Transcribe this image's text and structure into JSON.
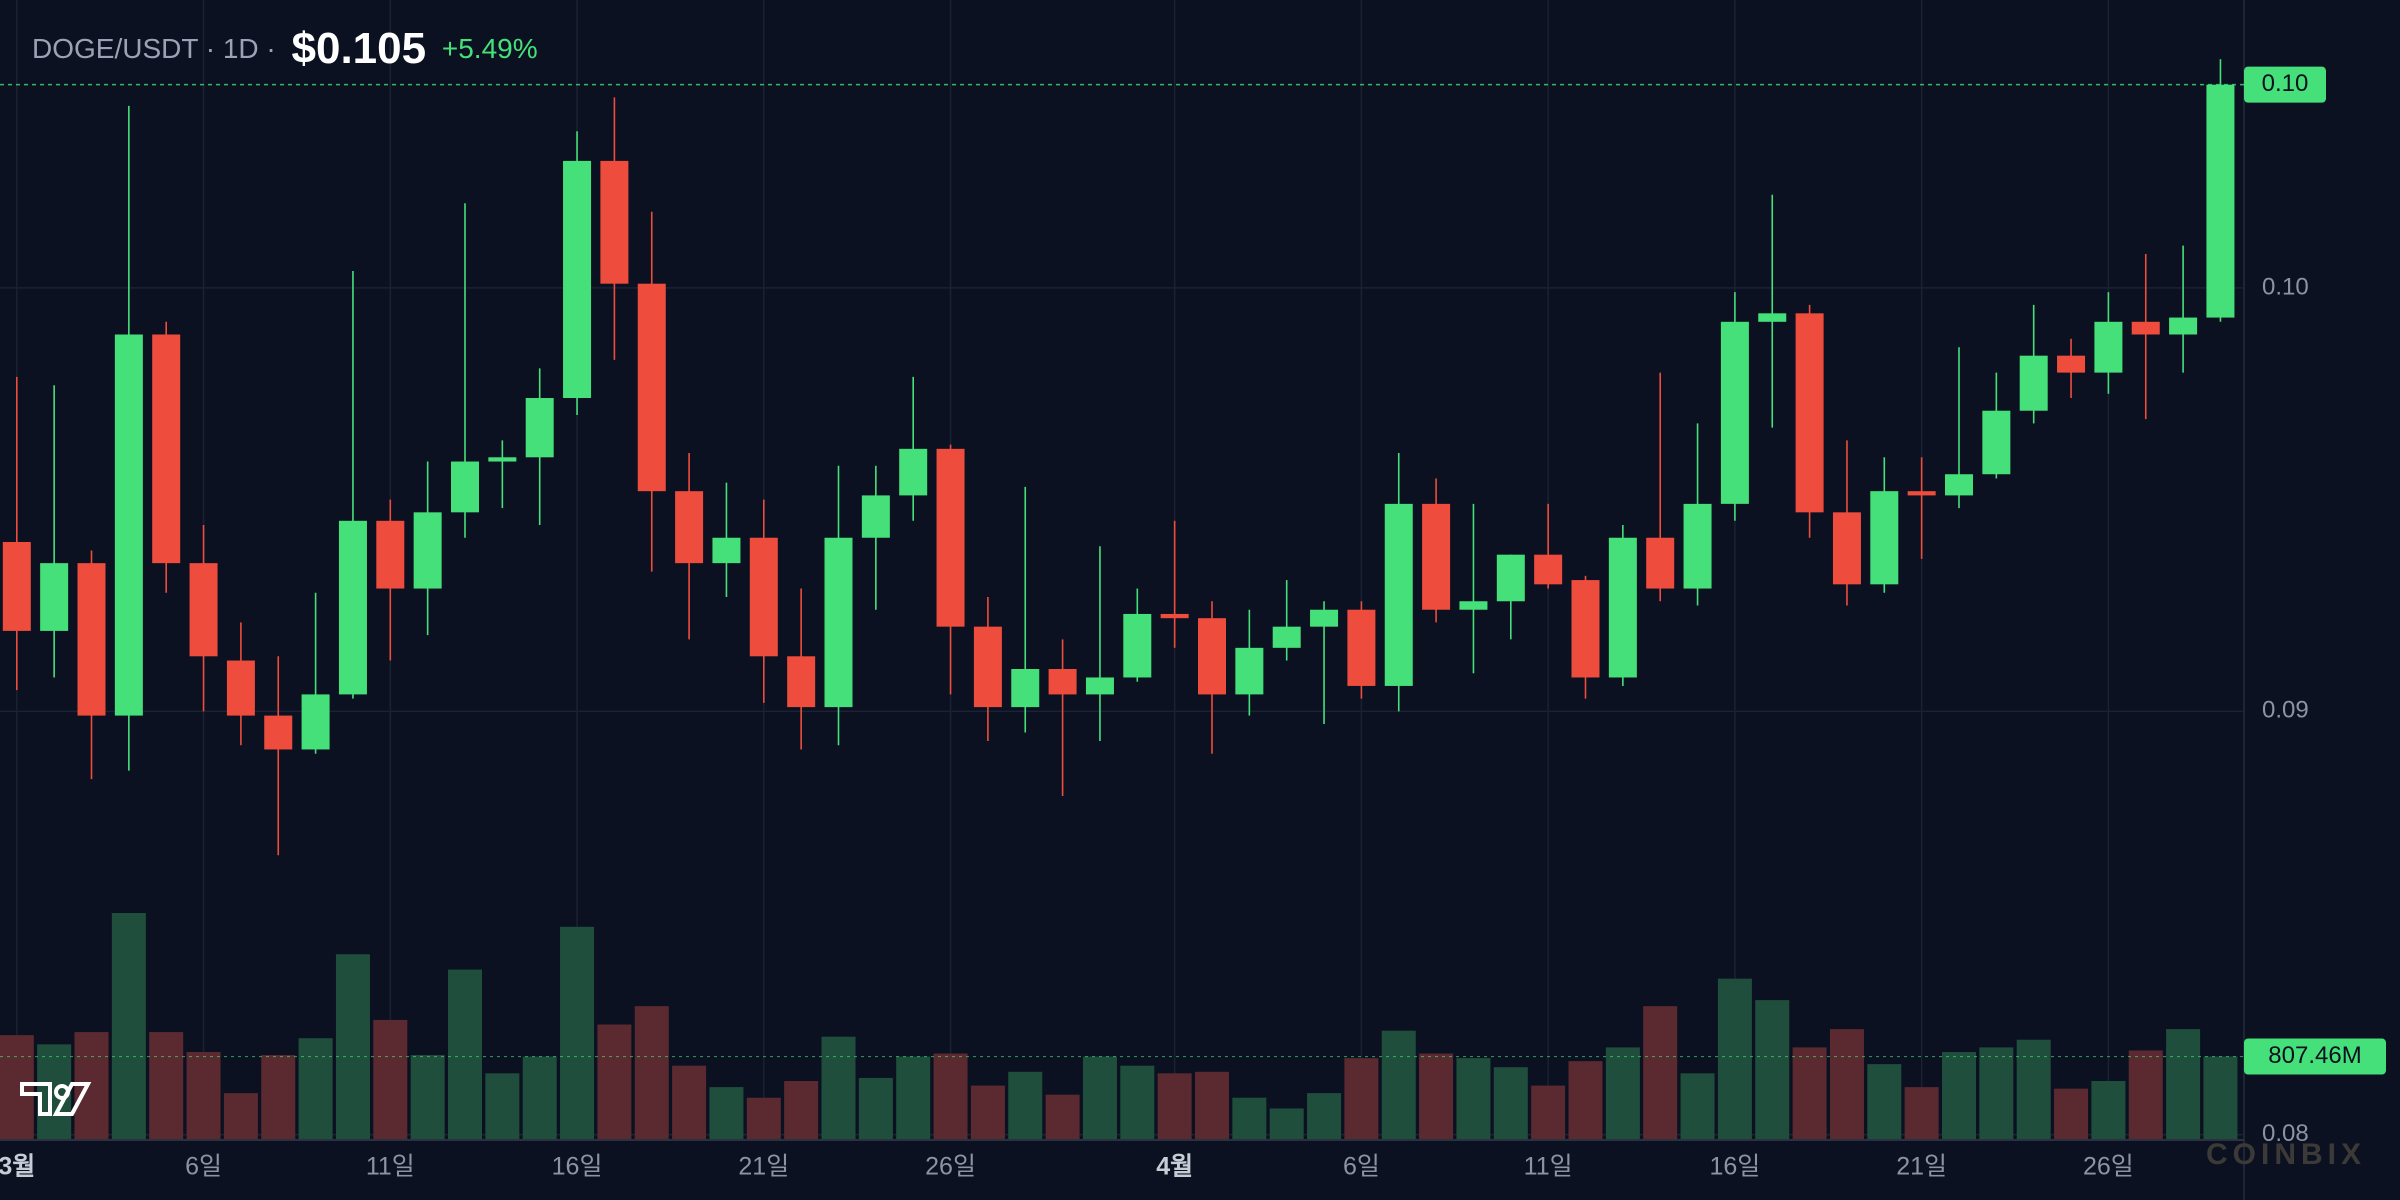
{
  "chart_data": {
    "type": "candlestick",
    "symbol": "DOGE/USDT · 1D ·",
    "price": "$0.105",
    "change": "+5.49%",
    "categories": [
      "3월",
      null,
      null,
      null,
      null,
      "6일",
      null,
      null,
      null,
      null,
      "11일",
      null,
      null,
      null,
      null,
      "16일",
      null,
      null,
      null,
      null,
      "21일",
      null,
      null,
      null,
      null,
      "26일",
      null,
      null,
      null,
      null,
      null,
      "4월",
      null,
      null,
      null,
      null,
      "6일",
      null,
      null,
      null,
      null,
      "11일",
      null,
      null,
      null,
      null,
      "16일",
      null,
      null,
      null,
      null,
      "21일",
      null,
      null,
      null,
      null,
      "26일",
      null,
      null,
      null
    ],
    "open": [
      0.094,
      0.0919,
      0.0935,
      0.0899,
      0.0989,
      0.0935,
      0.0912,
      0.0899,
      0.0891,
      0.0904,
      0.0945,
      0.0929,
      0.0947,
      0.0959,
      0.096,
      0.0974,
      0.103,
      0.1001,
      0.0952,
      0.0935,
      0.0941,
      0.0913,
      0.0901,
      0.0941,
      0.0951,
      0.0962,
      0.092,
      0.0901,
      0.091,
      0.0904,
      0.0908,
      0.0923,
      0.0922,
      0.0904,
      0.0915,
      0.092,
      0.0924,
      0.0906,
      0.0949,
      0.0924,
      0.0926,
      0.0937,
      0.0931,
      0.0908,
      0.0941,
      0.0929,
      0.0949,
      0.0992,
      0.0994,
      0.0947,
      0.093,
      0.0952,
      0.0951,
      0.0956,
      0.0971,
      0.0984,
      0.098,
      0.0992,
      0.0989,
      0.0993
    ],
    "high": [
      0.0979,
      0.0977,
      0.0938,
      0.1043,
      0.0992,
      0.0944,
      0.0921,
      0.0913,
      0.0928,
      0.1004,
      0.095,
      0.0959,
      0.102,
      0.0964,
      0.0981,
      0.1037,
      0.1045,
      0.1018,
      0.0961,
      0.0954,
      0.095,
      0.0929,
      0.0958,
      0.0958,
      0.0979,
      0.0963,
      0.0927,
      0.0953,
      0.0917,
      0.0939,
      0.0929,
      0.0945,
      0.0926,
      0.0924,
      0.0931,
      0.0926,
      0.0926,
      0.0961,
      0.0955,
      0.0949,
      0.0937,
      0.0949,
      0.0932,
      0.0944,
      0.098,
      0.0968,
      0.0999,
      0.1022,
      0.0996,
      0.0964,
      0.096,
      0.096,
      0.0986,
      0.098,
      0.0996,
      0.0988,
      0.0999,
      0.1008,
      0.101,
      0.1054
    ],
    "low": [
      0.0905,
      0.0908,
      0.0884,
      0.0886,
      0.0928,
      0.09,
      0.0892,
      0.0866,
      0.089,
      0.0903,
      0.0912,
      0.0918,
      0.0941,
      0.0948,
      0.0944,
      0.097,
      0.0983,
      0.0933,
      0.0917,
      0.0927,
      0.0902,
      0.0891,
      0.0892,
      0.0924,
      0.0945,
      0.0904,
      0.0893,
      0.0895,
      0.088,
      0.0893,
      0.0907,
      0.0915,
      0.089,
      0.0899,
      0.0912,
      0.0897,
      0.0903,
      0.09,
      0.0921,
      0.0909,
      0.0917,
      0.0929,
      0.0903,
      0.0906,
      0.0926,
      0.0925,
      0.0945,
      0.0967,
      0.0941,
      0.0925,
      0.0928,
      0.0936,
      0.0948,
      0.0955,
      0.0968,
      0.0974,
      0.0975,
      0.0969,
      0.098,
      0.0992
    ],
    "close": [
      0.0919,
      0.0935,
      0.0899,
      0.0989,
      0.0935,
      0.0913,
      0.0899,
      0.0891,
      0.0904,
      0.0945,
      0.0929,
      0.0947,
      0.0959,
      0.096,
      0.0974,
      0.103,
      0.1001,
      0.0952,
      0.0935,
      0.0941,
      0.0913,
      0.0901,
      0.0941,
      0.0951,
      0.0962,
      0.092,
      0.0901,
      0.091,
      0.0904,
      0.0908,
      0.0923,
      0.0922,
      0.0904,
      0.0915,
      0.092,
      0.0924,
      0.0906,
      0.0949,
      0.0924,
      0.0926,
      0.0937,
      0.093,
      0.0908,
      0.0941,
      0.0929,
      0.0949,
      0.0992,
      0.0994,
      0.0947,
      0.093,
      0.0952,
      0.0951,
      0.0956,
      0.0971,
      0.0984,
      0.098,
      0.0992,
      0.0989,
      0.0993,
      0.1048
    ],
    "volume": [
      1017,
      927,
      1047,
      2213,
      1047,
      852,
      449,
      822,
      987,
      1809,
      1166,
      822,
      1659,
      643,
      807,
      2078,
      1121,
      1301,
      718,
      508,
      404,
      568,
      1002,
      598,
      807,
      837,
      523,
      658,
      434,
      807,
      718,
      643,
      658,
      404,
      299,
      449,
      792,
      1061,
      837,
      792,
      703,
      523,
      762,
      897,
      1301,
      643,
      1570,
      1360,
      897,
      1076,
      733,
      508,
      852,
      897,
      972,
      493,
      568,
      867,
      1076,
      807.46
    ],
    "colors": {
      "up": "#45e07a",
      "down": "#ee4d3e",
      "up_volume": "#1f4f3c",
      "down_volume": "#5b2a31"
    },
    "ylim": [
      0.0799,
      0.1068
    ],
    "yticks": [
      0.08,
      0.09,
      {
        "value": 0.1,
        "label": "0.10"
      }
    ],
    "grid": true,
    "last_price": {
      "value": 0.1048,
      "label": "0.10"
    },
    "last_volume": {
      "value": 807.46,
      "label": "807.46M"
    },
    "watermark": "COINBIX"
  }
}
